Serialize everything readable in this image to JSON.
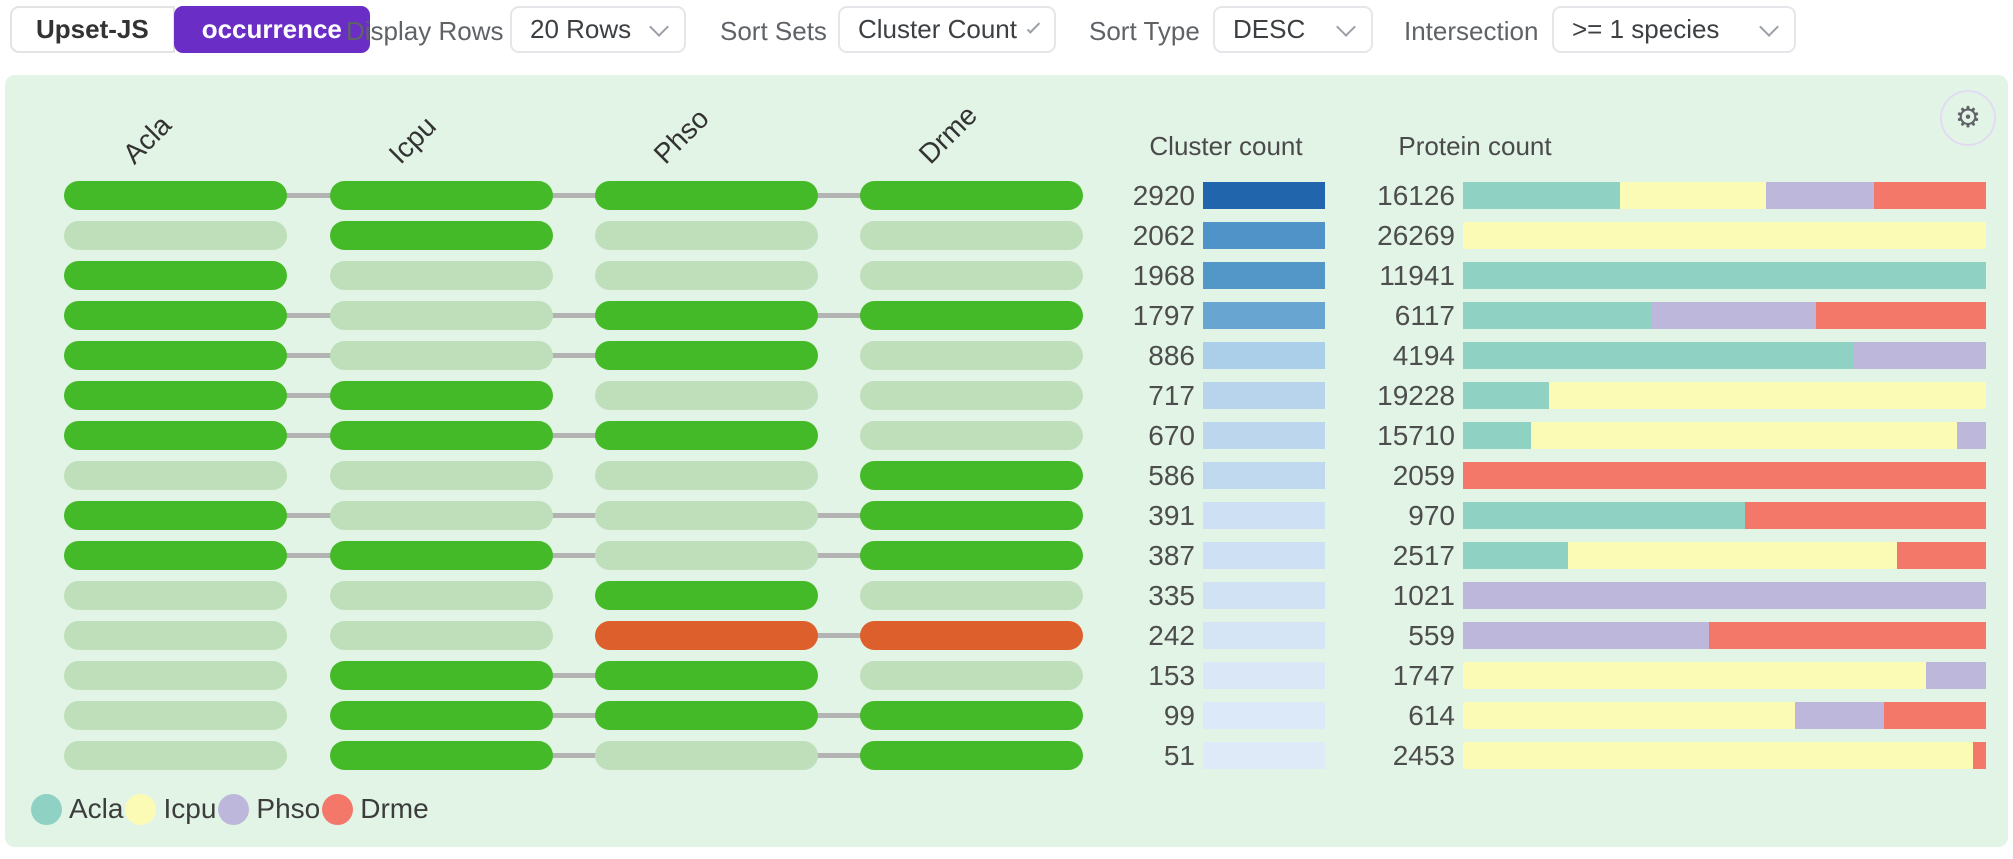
{
  "toolbar": {
    "brand_label": "Upset-JS",
    "mode_label": "occurrence",
    "display_rows_label": "Display Rows",
    "display_rows_value": "20 Rows",
    "sort_sets_label": "Sort Sets",
    "sort_sets_value": "Cluster Count",
    "sort_type_label": "Sort Type",
    "sort_type_value": "DESC",
    "intersection_label": "Intersection",
    "intersection_value": ">= 1 species"
  },
  "panel": {
    "cluster_count_header": "Cluster count",
    "protein_count_header": "Protein count"
  },
  "icons": {
    "gear_glyph": "⚙"
  },
  "colors": {
    "accent_purple": "#6a2dc6",
    "panel_background": "#e2f4e6",
    "member": "#44ba28",
    "non_member": "#bfdfba",
    "highlight": "#dd5f2b",
    "connector": "#b3b3b3"
  },
  "chart_data": {
    "type": "upset-matrix",
    "sets": [
      "Acla",
      "Icpu",
      "Phso",
      "Drme"
    ],
    "species_colors": [
      "#8fd2c3",
      "#fbfbb5",
      "#bdb8db",
      "#f3786a"
    ],
    "sort": {
      "sort_sets": "Cluster Count",
      "sort_type": "DESC",
      "intersection_filter": ">= 1 species"
    },
    "legend_position": "bottom-left",
    "rows": [
      {
        "cluster_count": 2920,
        "cluster_bar_color": "#2166ac",
        "protein_count": 16126,
        "membership": [
          1,
          1,
          1,
          1
        ],
        "highlighted": false,
        "protein_composition": [
          0.3,
          0.28,
          0.205,
          0.215
        ]
      },
      {
        "cluster_count": 2062,
        "cluster_bar_color": "#4f93c8",
        "protein_count": 26269,
        "membership": [
          0,
          1,
          0,
          0
        ],
        "highlighted": false,
        "protein_composition": [
          0,
          1,
          0,
          0
        ]
      },
      {
        "cluster_count": 1968,
        "cluster_bar_color": "#5397c9",
        "protein_count": 11941,
        "membership": [
          1,
          0,
          0,
          0
        ],
        "highlighted": false,
        "protein_composition": [
          1,
          0,
          0,
          0
        ]
      },
      {
        "cluster_count": 1797,
        "cluster_bar_color": "#68a5d0",
        "protein_count": 6117,
        "membership": [
          1,
          0,
          1,
          1
        ],
        "highlighted": false,
        "protein_composition": [
          0.36,
          0,
          0.315,
          0.325
        ]
      },
      {
        "cluster_count": 886,
        "cluster_bar_color": "#abcfe9",
        "protein_count": 4194,
        "membership": [
          1,
          0,
          1,
          0
        ],
        "highlighted": false,
        "protein_composition": [
          0.745,
          0,
          0.255,
          0
        ]
      },
      {
        "cluster_count": 717,
        "cluster_bar_color": "#b7d4ec",
        "protein_count": 19228,
        "membership": [
          1,
          1,
          0,
          0
        ],
        "highlighted": false,
        "protein_composition": [
          0.165,
          0.835,
          0,
          0
        ]
      },
      {
        "cluster_count": 670,
        "cluster_bar_color": "#bbd6ed",
        "protein_count": 15710,
        "membership": [
          1,
          1,
          1,
          0
        ],
        "highlighted": false,
        "protein_composition": [
          0.13,
          0.815,
          0.055,
          0
        ]
      },
      {
        "cluster_count": 586,
        "cluster_bar_color": "#c1d9ef",
        "protein_count": 2059,
        "membership": [
          0,
          0,
          0,
          1
        ],
        "highlighted": false,
        "protein_composition": [
          0,
          0,
          0,
          1
        ]
      },
      {
        "cluster_count": 391,
        "cluster_bar_color": "#cee0f3",
        "protein_count": 970,
        "membership": [
          1,
          0,
          0,
          1
        ],
        "highlighted": false,
        "protein_composition": [
          0.54,
          0,
          0,
          0.46
        ]
      },
      {
        "cluster_count": 387,
        "cluster_bar_color": "#cee0f3",
        "protein_count": 2517,
        "membership": [
          1,
          1,
          0,
          1
        ],
        "highlighted": false,
        "protein_composition": [
          0.2,
          0.63,
          0,
          0.17
        ]
      },
      {
        "cluster_count": 335,
        "cluster_bar_color": "#d1e2f4",
        "protein_count": 1021,
        "membership": [
          0,
          0,
          1,
          0
        ],
        "highlighted": false,
        "protein_composition": [
          0,
          0,
          1,
          0
        ]
      },
      {
        "cluster_count": 242,
        "cluster_bar_color": "#d5e5f6",
        "protein_count": 559,
        "membership": [
          0,
          0,
          1,
          1
        ],
        "highlighted": true,
        "protein_composition": [
          0,
          0,
          0.47,
          0.53
        ]
      },
      {
        "cluster_count": 153,
        "cluster_bar_color": "#d9e7f7",
        "protein_count": 1747,
        "membership": [
          0,
          1,
          1,
          0
        ],
        "highlighted": false,
        "protein_composition": [
          0,
          0.885,
          0.115,
          0
        ]
      },
      {
        "cluster_count": 99,
        "cluster_bar_color": "#dce9f8",
        "protein_count": 614,
        "membership": [
          0,
          1,
          1,
          1
        ],
        "highlighted": false,
        "protein_composition": [
          0,
          0.635,
          0.17,
          0.195
        ]
      },
      {
        "cluster_count": 51,
        "cluster_bar_color": "#deeaf8",
        "protein_count": 2453,
        "membership": [
          0,
          1,
          0,
          1
        ],
        "highlighted": false,
        "protein_composition": [
          0,
          0.975,
          0,
          0.025
        ]
      }
    ]
  }
}
